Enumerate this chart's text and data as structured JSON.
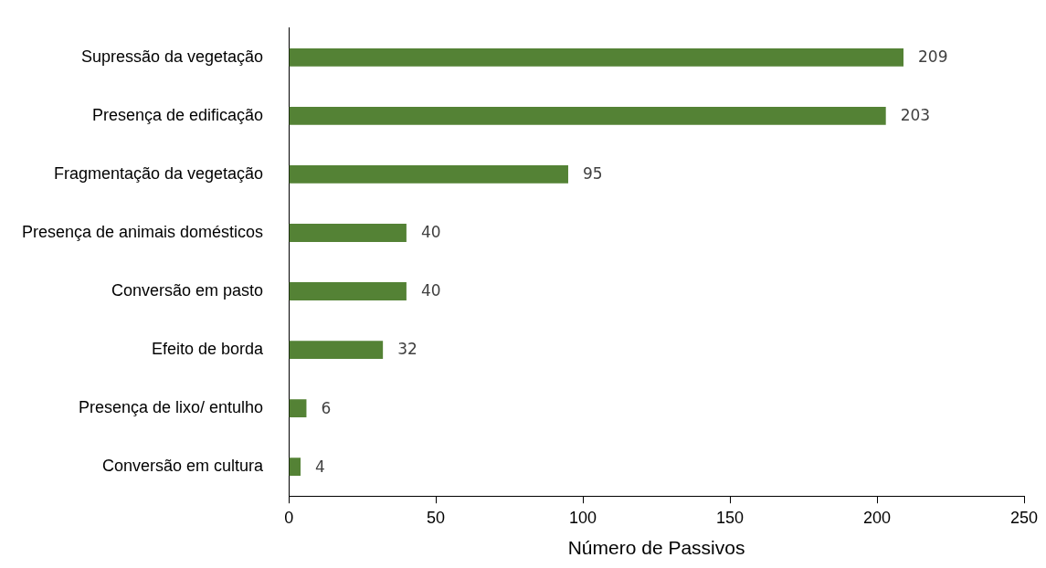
{
  "chart_data": {
    "type": "bar",
    "orientation": "horizontal",
    "categories": [
      "Supressão da vegetação",
      "Presença de edificação",
      "Fragmentação da vegetação",
      "Presença de animais domésticos",
      "Conversão em pasto",
      "Efeito de borda",
      "Presença de lixo/ entulho",
      "Conversão em cultura"
    ],
    "values": [
      209,
      203,
      95,
      40,
      40,
      32,
      6,
      4
    ],
    "color": "#548235",
    "xlabel": "Número de Passivos",
    "xlim": [
      0,
      250
    ],
    "xticks": [
      0,
      50,
      100,
      150,
      200,
      250
    ],
    "data_labels": true
  }
}
